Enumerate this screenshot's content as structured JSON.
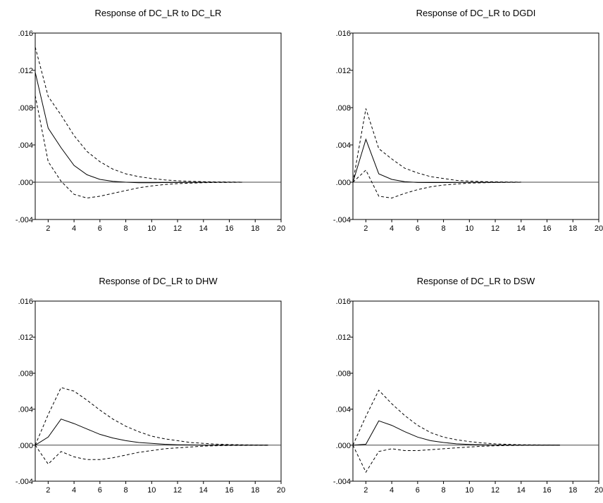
{
  "figure": {
    "colors": {
      "line": "#000000",
      "band": "#000000",
      "zero": "#444444",
      "frame": "#000000",
      "background": "#ffffff"
    }
  },
  "chart_data": [
    {
      "type": "line",
      "title": "Response of DC_LR to DC_LR",
      "xlim": [
        1,
        20
      ],
      "ylim": [
        -0.004,
        0.016
      ],
      "yticks": [
        ".016",
        ".012",
        ".008",
        ".004",
        ".000",
        "-.004"
      ],
      "yticks_values": [
        0.016,
        0.012,
        0.008,
        0.004,
        0.0,
        -0.004
      ],
      "xticks": [
        "2",
        "4",
        "6",
        "8",
        "10",
        "12",
        "14",
        "16",
        "18",
        "20"
      ],
      "xticks_values": [
        2,
        4,
        6,
        8,
        10,
        12,
        14,
        16,
        18,
        20
      ],
      "series": [
        {
          "style": "solid",
          "x": [
            1,
            2,
            3,
            4,
            5,
            6,
            7,
            8,
            9,
            10,
            11,
            12,
            13,
            14,
            15,
            16,
            17
          ],
          "values": [
            0.0118,
            0.0058,
            0.0037,
            0.0018,
            0.0008,
            0.0003,
            0.0001,
            0.0,
            -5e-05,
            -5e-05,
            -4e-05,
            -3e-05,
            -2e-05,
            -1e-05,
            0.0,
            0.0,
            0.0
          ]
        },
        {
          "style": "dashed",
          "x": [
            1,
            2,
            3,
            4,
            5,
            6,
            7,
            8,
            9,
            10,
            11,
            12,
            13,
            14,
            15,
            16,
            17
          ],
          "values": [
            0.0145,
            0.0092,
            0.0072,
            0.005,
            0.0033,
            0.0022,
            0.0014,
            0.0009,
            0.0006,
            0.0004,
            0.00025,
            0.00015,
            0.0001,
            5e-05,
            3e-05,
            2e-05,
            1e-05
          ]
        },
        {
          "style": "dashed",
          "x": [
            1,
            2,
            3,
            4,
            5,
            6,
            7,
            8,
            9,
            10,
            11,
            12,
            13,
            14,
            15,
            16,
            17
          ],
          "values": [
            0.0093,
            0.0022,
            0.0001,
            -0.0013,
            -0.0017,
            -0.0015,
            -0.0012,
            -0.0009,
            -0.0006,
            -0.0004,
            -0.00025,
            -0.00015,
            -0.0001,
            -5e-05,
            -3e-05,
            -2e-05,
            -1e-05
          ]
        }
      ]
    },
    {
      "type": "line",
      "title": "Response of DC_LR to DGDI",
      "xlim": [
        1,
        20
      ],
      "ylim": [
        -0.004,
        0.016
      ],
      "yticks": [
        ".016",
        ".012",
        ".008",
        ".004",
        ".000",
        "-.004"
      ],
      "yticks_values": [
        0.016,
        0.012,
        0.008,
        0.004,
        0.0,
        -0.004
      ],
      "xticks": [
        "2",
        "4",
        "6",
        "8",
        "10",
        "12",
        "14",
        "16",
        "18",
        "20"
      ],
      "xticks_values": [
        2,
        4,
        6,
        8,
        10,
        12,
        14,
        16,
        18,
        20
      ],
      "series": [
        {
          "style": "solid",
          "x": [
            1,
            2,
            3,
            4,
            5,
            6,
            7,
            8,
            9,
            10,
            11,
            12,
            13,
            14
          ],
          "values": [
            0.0,
            0.0046,
            0.0009,
            0.0003,
            5e-05,
            -3e-05,
            -4e-05,
            -4e-05,
            -3e-05,
            -2e-05,
            -1e-05,
            -1e-05,
            0.0,
            0.0
          ]
        },
        {
          "style": "dashed",
          "x": [
            1,
            2,
            3,
            4,
            5,
            6,
            7,
            8,
            9,
            10,
            11,
            12,
            13,
            14
          ],
          "values": [
            0.0,
            0.0079,
            0.0036,
            0.0025,
            0.0015,
            0.001,
            0.0006,
            0.0004,
            0.0002,
            0.00012,
            7e-05,
            4e-05,
            2e-05,
            1e-05
          ]
        },
        {
          "style": "dashed",
          "x": [
            1,
            2,
            3,
            4,
            5,
            6,
            7,
            8,
            9,
            10,
            11,
            12,
            13,
            14
          ],
          "values": [
            0.0,
            0.0013,
            -0.0015,
            -0.0017,
            -0.0012,
            -0.0008,
            -0.0005,
            -0.0003,
            -0.0002,
            -0.0001,
            -6e-05,
            -3e-05,
            -2e-05,
            -1e-05
          ]
        }
      ]
    },
    {
      "type": "line",
      "title": "Response of DC_LR to DHW",
      "xlim": [
        1,
        20
      ],
      "ylim": [
        -0.004,
        0.016
      ],
      "yticks": [
        ".016",
        ".012",
        ".008",
        ".004",
        ".000",
        "-.004"
      ],
      "yticks_values": [
        0.016,
        0.012,
        0.008,
        0.004,
        0.0,
        -0.004
      ],
      "xticks": [
        "2",
        "4",
        "6",
        "8",
        "10",
        "12",
        "14",
        "16",
        "18",
        "20"
      ],
      "xticks_values": [
        2,
        4,
        6,
        8,
        10,
        12,
        14,
        16,
        18,
        20
      ],
      "series": [
        {
          "style": "solid",
          "x": [
            1,
            2,
            3,
            4,
            5,
            6,
            7,
            8,
            9,
            10,
            11,
            12,
            13,
            14,
            15,
            16,
            17,
            18,
            19
          ],
          "values": [
            0.0,
            0.0009,
            0.0029,
            0.0024,
            0.0018,
            0.0012,
            0.0008,
            0.0005,
            0.0003,
            0.0002,
            0.0001,
            5e-05,
            3e-05,
            1e-05,
            0.0,
            0.0,
            0.0,
            0.0,
            0.0
          ]
        },
        {
          "style": "dashed",
          "x": [
            1,
            2,
            3,
            4,
            5,
            6,
            7,
            8,
            9,
            10,
            11,
            12,
            13,
            14,
            15,
            16,
            17,
            18,
            19
          ],
          "values": [
            0.0,
            0.0034,
            0.0064,
            0.006,
            0.005,
            0.0039,
            0.0029,
            0.0021,
            0.0015,
            0.001,
            0.0007,
            0.0005,
            0.0003,
            0.0002,
            0.00012,
            7e-05,
            4e-05,
            2e-05,
            1e-05
          ]
        },
        {
          "style": "dashed",
          "x": [
            1,
            2,
            3,
            4,
            5,
            6,
            7,
            8,
            9,
            10,
            11,
            12,
            13,
            14,
            15,
            16,
            17,
            18,
            19
          ],
          "values": [
            0.0,
            -0.0021,
            -0.0007,
            -0.0013,
            -0.0016,
            -0.0016,
            -0.0014,
            -0.0011,
            -0.0008,
            -0.0006,
            -0.0004,
            -0.0003,
            -0.0002,
            -0.0001,
            -6e-05,
            -3e-05,
            -2e-05,
            -1e-05,
            0.0
          ]
        }
      ]
    },
    {
      "type": "line",
      "title": "Response of DC_LR to DSW",
      "xlim": [
        1,
        20
      ],
      "ylim": [
        -0.004,
        0.016
      ],
      "yticks": [
        ".016",
        ".012",
        ".008",
        ".004",
        ".000",
        "-.004"
      ],
      "yticks_values": [
        0.016,
        0.012,
        0.008,
        0.004,
        0.0,
        -0.004
      ],
      "xticks": [
        "2",
        "4",
        "6",
        "8",
        "10",
        "12",
        "14",
        "16",
        "18",
        "20"
      ],
      "xticks_values": [
        2,
        4,
        6,
        8,
        10,
        12,
        14,
        16,
        18,
        20
      ],
      "series": [
        {
          "style": "solid",
          "x": [
            1,
            2,
            3,
            4,
            5,
            6,
            7,
            8,
            9,
            10,
            11,
            12,
            13,
            14,
            15,
            16,
            17
          ],
          "values": [
            0.0,
            0.0001,
            0.0027,
            0.0022,
            0.0015,
            0.0009,
            0.0005,
            0.0003,
            0.00015,
            8e-05,
            4e-05,
            2e-05,
            1e-05,
            0.0,
            0.0,
            0.0,
            0.0
          ]
        },
        {
          "style": "dashed",
          "x": [
            1,
            2,
            3,
            4,
            5,
            6,
            7,
            8,
            9,
            10,
            11,
            12,
            13,
            14,
            15,
            16,
            17
          ],
          "values": [
            0.0,
            0.0032,
            0.0061,
            0.0046,
            0.0033,
            0.0022,
            0.0014,
            0.0009,
            0.0006,
            0.0004,
            0.00025,
            0.00015,
            9e-05,
            5e-05,
            3e-05,
            2e-05,
            1e-05
          ]
        },
        {
          "style": "dashed",
          "x": [
            1,
            2,
            3,
            4,
            5,
            6,
            7,
            8,
            9,
            10,
            11,
            12,
            13,
            14,
            15,
            16,
            17
          ],
          "values": [
            0.0,
            -0.003,
            -0.0007,
            -0.0004,
            -0.0006,
            -0.0006,
            -0.0005,
            -0.0004,
            -0.0003,
            -0.0002,
            -0.00012,
            -7e-05,
            -4e-05,
            -2e-05,
            -1e-05,
            0.0,
            0.0
          ]
        }
      ]
    }
  ]
}
